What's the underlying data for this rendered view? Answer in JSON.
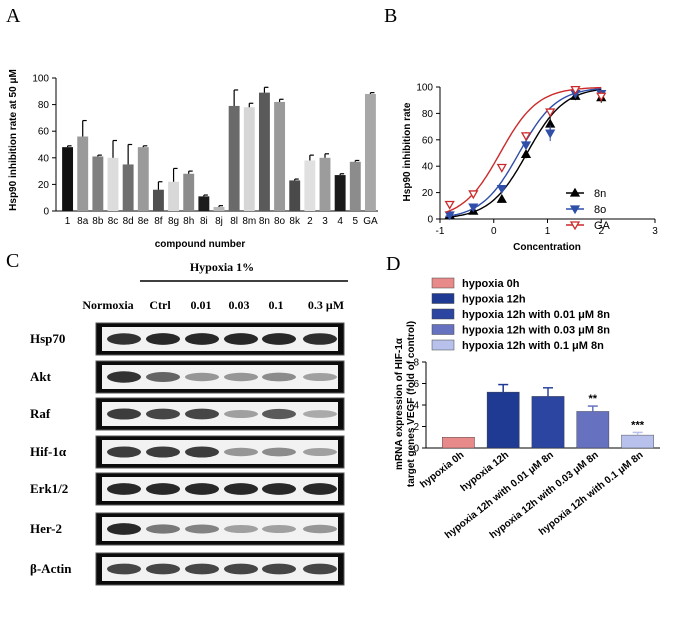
{
  "panels": {
    "a": "A",
    "b": "B",
    "c": "C",
    "d": "D"
  },
  "chart_data": [
    {
      "id": "A",
      "type": "bar",
      "title": "",
      "xlabel": "compound number",
      "ylabel": "Hsp90 inhibition rate at 50 μM",
      "ylim": [
        0,
        100
      ],
      "yticks": [
        0,
        20,
        40,
        60,
        80,
        100
      ],
      "categories": [
        "1",
        "8a",
        "8b",
        "8c",
        "8d",
        "8e",
        "8f",
        "8g",
        "8h",
        "8i",
        "8j",
        "8l",
        "8m",
        "8n",
        "8o",
        "8k",
        "2",
        "3",
        "4",
        "5",
        "GA"
      ],
      "values": [
        48,
        56,
        41,
        40,
        35,
        48,
        16,
        22,
        28,
        11,
        3,
        79,
        78,
        89,
        82,
        23,
        38,
        40,
        27,
        37,
        88
      ],
      "errors": [
        1,
        12,
        1,
        13,
        15,
        1,
        6,
        10,
        2,
        1,
        1,
        12,
        3,
        4,
        2,
        1,
        4,
        3,
        1,
        1,
        1
      ],
      "colors": [
        "#111111",
        "#9a9a9a",
        "#808080",
        "#dcdcdc",
        "#6e6e6e",
        "#9a9a9a",
        "#505050",
        "#d8d8d8",
        "#8c8c8c",
        "#1c1c1c",
        "#b8b8b8",
        "#6a6a6a",
        "#d6d6d6",
        "#5a5a5a",
        "#9a9a9a",
        "#4a4a4a",
        "#e0e0e0",
        "#9c9c9c",
        "#1a1a1a",
        "#8c8c8c",
        "#a8a8a8"
      ]
    },
    {
      "id": "B",
      "type": "line",
      "title": "",
      "xlabel": "Concentration",
      "ylabel": "Hsp90 inhibition rate",
      "xlim": [
        -1,
        3
      ],
      "ylim": [
        0,
        100
      ],
      "xticks": [
        -1,
        0,
        1,
        2,
        3
      ],
      "yticks": [
        0,
        20,
        40,
        60,
        80,
        100
      ],
      "legend_position": "middle-right",
      "series": [
        {
          "name": "8n",
          "color": "#000000",
          "marker": "triangle-up",
          "ec50": 0.62,
          "hill": 1.25,
          "x": [
            -0.82,
            -0.38,
            0.15,
            0.6,
            1.05,
            1.52,
            2.0
          ],
          "y": [
            3,
            6,
            15,
            49,
            72,
            93,
            92
          ],
          "err": [
            1,
            1,
            2,
            3,
            8,
            3,
            4
          ]
        },
        {
          "name": "8o",
          "color": "#2f4fa8",
          "marker": "triangle-down",
          "ec50": 0.47,
          "hill": 1.25,
          "x": [
            -0.82,
            -0.38,
            0.15,
            0.6,
            1.05,
            1.52,
            2.0
          ],
          "y": [
            3,
            9,
            23,
            56,
            65,
            95,
            95
          ],
          "err": [
            1,
            1,
            2,
            3,
            6,
            3,
            2
          ]
        },
        {
          "name": "GA",
          "color": "#cc2a2a",
          "marker": "triangle-down-open",
          "ec50": 0.12,
          "hill": 1.25,
          "x": [
            -0.82,
            -0.38,
            0.15,
            0.6,
            1.05,
            1.52,
            2.0
          ],
          "y": [
            11,
            19,
            39,
            63,
            81,
            98,
            93
          ],
          "err": [
            1,
            1,
            2,
            3,
            3,
            2,
            4
          ]
        }
      ]
    },
    {
      "id": "C",
      "type": "blot",
      "header": "Hypoxia 1%",
      "lanes": [
        "Normoxia",
        "Ctrl",
        "0.01",
        "0.03",
        "0.1",
        "0.3 μM"
      ],
      "rows": [
        {
          "label": "Hsp70",
          "intensity": [
            0.9,
            0.95,
            0.95,
            0.95,
            0.95,
            0.92
          ]
        },
        {
          "label": "Akt",
          "intensity": [
            0.9,
            0.65,
            0.4,
            0.4,
            0.45,
            0.35
          ]
        },
        {
          "label": "Raf",
          "intensity": [
            0.85,
            0.8,
            0.8,
            0.35,
            0.7,
            0.3
          ]
        },
        {
          "label": "Hif-1α",
          "intensity": [
            0.85,
            0.85,
            0.85,
            0.4,
            0.45,
            0.35
          ]
        },
        {
          "label": "Erk1/2",
          "intensity": [
            0.95,
            0.95,
            0.95,
            0.95,
            0.95,
            0.95
          ]
        },
        {
          "label": "Her-2",
          "intensity": [
            0.95,
            0.55,
            0.5,
            0.35,
            0.35,
            0.4
          ]
        },
        {
          "label": "β-Actin",
          "intensity": [
            0.8,
            0.8,
            0.8,
            0.8,
            0.8,
            0.8
          ]
        }
      ]
    },
    {
      "id": "D",
      "type": "bar",
      "title": "",
      "xlabel": "",
      "ylabel_line1": "mRNA expression of HIF-1α",
      "ylabel_line2": "target genes VEGF (fold of control)",
      "ylim": [
        0,
        8
      ],
      "yticks": [
        0,
        2,
        4,
        6,
        8
      ],
      "categories": [
        "hypoxia 0h",
        "hypoxia  12h",
        "hypoxia 12h with 0.01 μM 8n",
        "hypoxia 12h with 0.03 μM 8n",
        "hypoxia 12h with 0.1 μM 8n"
      ],
      "legend": [
        "hypoxia 0h",
        "hypoxia  12h",
        "hypoxia 12h with 0.01 μM 8n",
        "hypoxia 12h with 0.03 μM 8n",
        "hypoxia 12h with 0.1 μM 8n"
      ],
      "values": [
        1.0,
        5.2,
        4.8,
        3.4,
        1.2
      ],
      "errors": [
        0.0,
        0.7,
        0.8,
        0.5,
        0.25
      ],
      "significance": [
        "",
        "",
        "",
        "**",
        "***"
      ],
      "colors": [
        "#e88a8a",
        "#1f3a93",
        "#2c45a0",
        "#6672c0",
        "#b7c1ec"
      ]
    }
  ]
}
